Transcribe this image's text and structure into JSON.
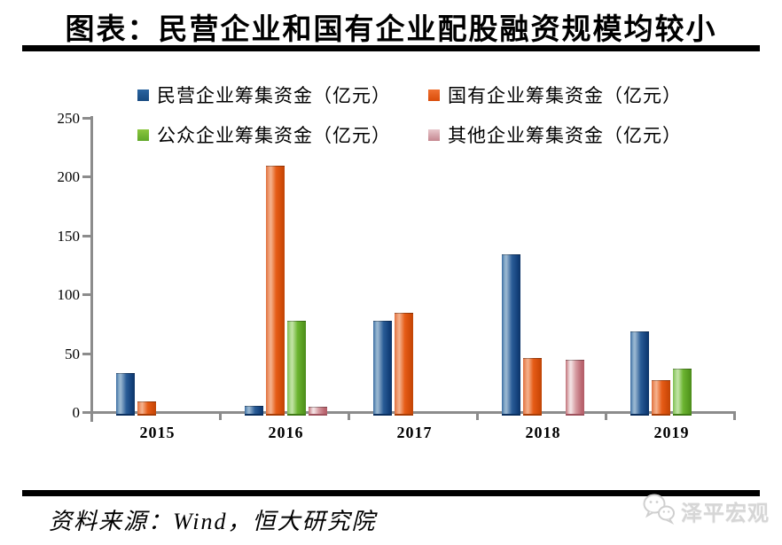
{
  "header": {
    "title": "图表：民营企业和国有企业配股融资规模均较小"
  },
  "chart_data": {
    "type": "bar",
    "categories": [
      "2015",
      "2016",
      "2017",
      "2018",
      "2019"
    ],
    "series": [
      {
        "name": "民营企业筹集资金（亿元）",
        "color": "#1F4E86",
        "values": [
          34,
          6,
          78,
          135,
          69
        ]
      },
      {
        "name": "国有企业筹集资金（亿元）",
        "color": "#E4530F",
        "values": [
          10,
          210,
          85,
          47,
          28
        ]
      },
      {
        "name": "公众企业筹集资金（亿元）",
        "color": "#66B32C",
        "values": [
          0,
          78,
          0,
          0,
          38
        ]
      },
      {
        "name": "其他企业筹集资金（亿元）",
        "color": "#D9A3AB",
        "values": [
          0,
          5,
          0,
          45,
          0
        ]
      }
    ],
    "ylim": [
      0,
      250
    ],
    "yticks": [
      0,
      50,
      100,
      150,
      200,
      250
    ],
    "grid": false,
    "legend_position": "top",
    "axis_color": "#8c8c8c"
  },
  "footer": {
    "source": "资料来源：Wind，恒大研究院",
    "logo_text": "泽平宏观"
  }
}
